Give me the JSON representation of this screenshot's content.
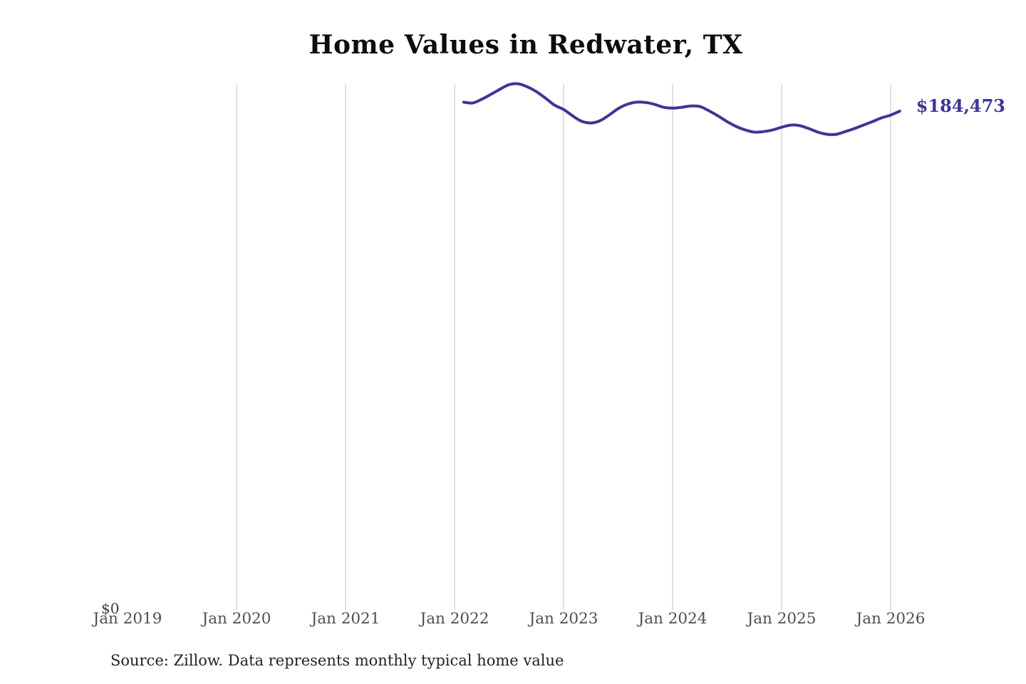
{
  "header": {
    "title": "Home Values in Redwater, TX"
  },
  "footer": {
    "source_note": "Source: Zillow. Data represents monthly typical home value"
  },
  "colors": {
    "background": "#ffffff",
    "line": "#3c3697",
    "end_label": "#3c3697",
    "gridline": "#cdcdcd",
    "axis_label": "#4f4f4f",
    "title": "#0d0d0d"
  },
  "y_axis": {
    "zero_label": "$0"
  },
  "x_axis": {
    "labels": [
      {
        "label": "Jan 2019",
        "gridline": false
      },
      {
        "label": "Jan 2020",
        "gridline": true
      },
      {
        "label": "Jan 2021",
        "gridline": true
      },
      {
        "label": "Jan 2022",
        "gridline": true
      },
      {
        "label": "Jan 2023",
        "gridline": true
      },
      {
        "label": "Jan 2024",
        "gridline": true
      },
      {
        "label": "Jan 2025",
        "gridline": true
      },
      {
        "label": "Jan 2026",
        "gridline": true
      }
    ]
  },
  "annotations": {
    "end_value_label": "$184,473"
  },
  "chart_data": {
    "type": "line",
    "title": "Home Values in Redwater, TX",
    "xlabel": "",
    "ylabel": "",
    "x_tick_labels": [
      "Jan 2019",
      "Jan 2020",
      "Jan 2021",
      "Jan 2022",
      "Jan 2023",
      "Jan 2024",
      "Jan 2025",
      "Jan 2026"
    ],
    "y_tick_labels": [
      "$0"
    ],
    "ylim": [
      0,
      195000
    ],
    "grid": "vertical-only",
    "legend": "none",
    "end_annotation": "$184,473",
    "series": [
      {
        "name": "Monthly typical home value",
        "dates": [
          "2022-02",
          "2022-03",
          "2022-04",
          "2022-05",
          "2022-06",
          "2022-07",
          "2022-08",
          "2022-09",
          "2022-10",
          "2022-11",
          "2022-12",
          "2023-01",
          "2023-02",
          "2023-03",
          "2023-04",
          "2023-05",
          "2023-06",
          "2023-07",
          "2023-08",
          "2023-09",
          "2023-10",
          "2023-11",
          "2023-12",
          "2024-01",
          "2024-02",
          "2024-03",
          "2024-04",
          "2024-05",
          "2024-06",
          "2024-07",
          "2024-08",
          "2024-09",
          "2024-10",
          "2024-11",
          "2024-12",
          "2025-01",
          "2025-02",
          "2025-03",
          "2025-04",
          "2025-05",
          "2025-06",
          "2025-07",
          "2025-08",
          "2025-09",
          "2025-10",
          "2025-11",
          "2025-12",
          "2026-01",
          "2026-02"
        ],
        "values": [
          187800,
          187500,
          188900,
          190700,
          192600,
          194300,
          194600,
          193500,
          191700,
          189300,
          186700,
          185100,
          182700,
          180700,
          180100,
          180900,
          183000,
          185400,
          187000,
          187800,
          187700,
          187000,
          185900,
          185600,
          185900,
          186400,
          186200,
          184600,
          182700,
          180600,
          178800,
          177500,
          176700,
          176900,
          177500,
          178500,
          179300,
          179100,
          178000,
          176700,
          175900,
          175900,
          176900,
          178000,
          179300,
          180600,
          182000,
          183000,
          184473
        ]
      }
    ]
  }
}
